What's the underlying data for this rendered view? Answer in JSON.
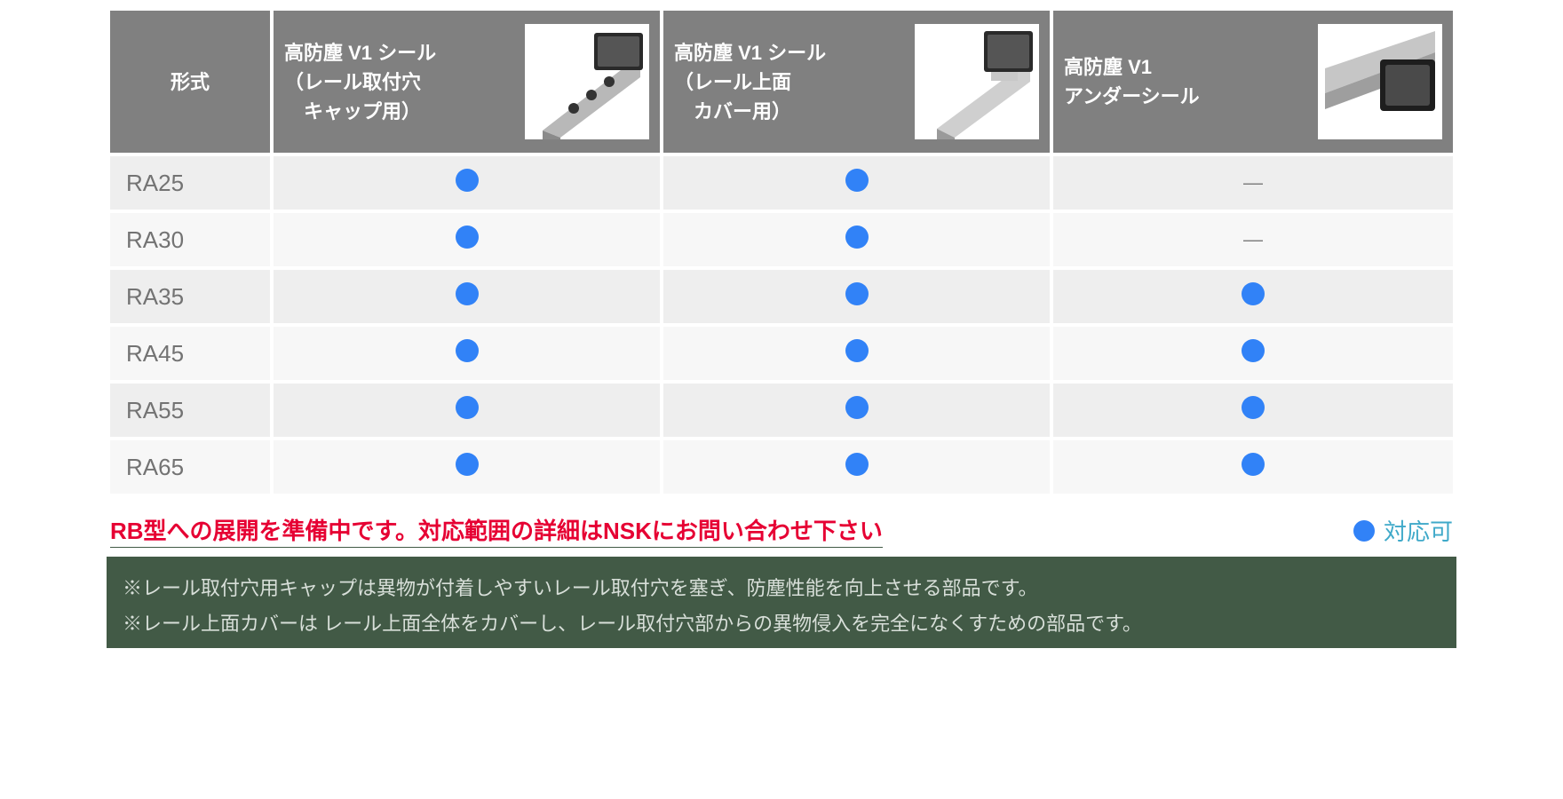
{
  "colors": {
    "header_bg": "#808080",
    "header_text": "#ffffff",
    "row_bg": "#eeeeee",
    "row_alt_bg": "#f7f7f7",
    "model_text": "#737373",
    "dot": "#3182f7",
    "dash": "#808080",
    "notice": "#e60033",
    "legend_text": "#3fa9c9",
    "footnote_bg": "#425a46",
    "footnote_text": "#d8dfd9"
  },
  "table": {
    "columns": [
      {
        "label_lines": [
          "形式"
        ],
        "has_thumb": false,
        "width_pct": 12
      },
      {
        "label_lines": [
          "高防塵 V1 シール",
          "（レール取付穴",
          "　キャップ用）"
        ],
        "has_thumb": true,
        "width_pct": 29
      },
      {
        "label_lines": [
          "高防塵 V1 シール",
          "（レール上面",
          "　カバー用）"
        ],
        "has_thumb": true,
        "width_pct": 29
      },
      {
        "label_lines": [
          "高防塵 V1",
          "アンダーシール"
        ],
        "has_thumb": true,
        "width_pct": 30
      }
    ],
    "rows": [
      {
        "model": "RA25",
        "cells": [
          "dot",
          "dot",
          "dash"
        ]
      },
      {
        "model": "RA30",
        "cells": [
          "dot",
          "dot",
          "dash"
        ]
      },
      {
        "model": "RA35",
        "cells": [
          "dot",
          "dot",
          "dot"
        ]
      },
      {
        "model": "RA45",
        "cells": [
          "dot",
          "dot",
          "dot"
        ]
      },
      {
        "model": "RA55",
        "cells": [
          "dot",
          "dot",
          "dot"
        ]
      },
      {
        "model": "RA65",
        "cells": [
          "dot",
          "dot",
          "dot"
        ]
      }
    ]
  },
  "notice_text": "RB型への展開を準備中です。対応範囲の詳細はNSKにお問い合わせ下さい",
  "legend_label": "対応可",
  "footnotes": [
    "※レール取付穴用キャップは異物が付着しやすいレール取付穴を塞ぎ、防塵性能を向上させる部品です。",
    "※レール上面カバーは レール上面全体をカバーし、レール取付穴部からの異物侵入を完全になくすための部品です。"
  ]
}
